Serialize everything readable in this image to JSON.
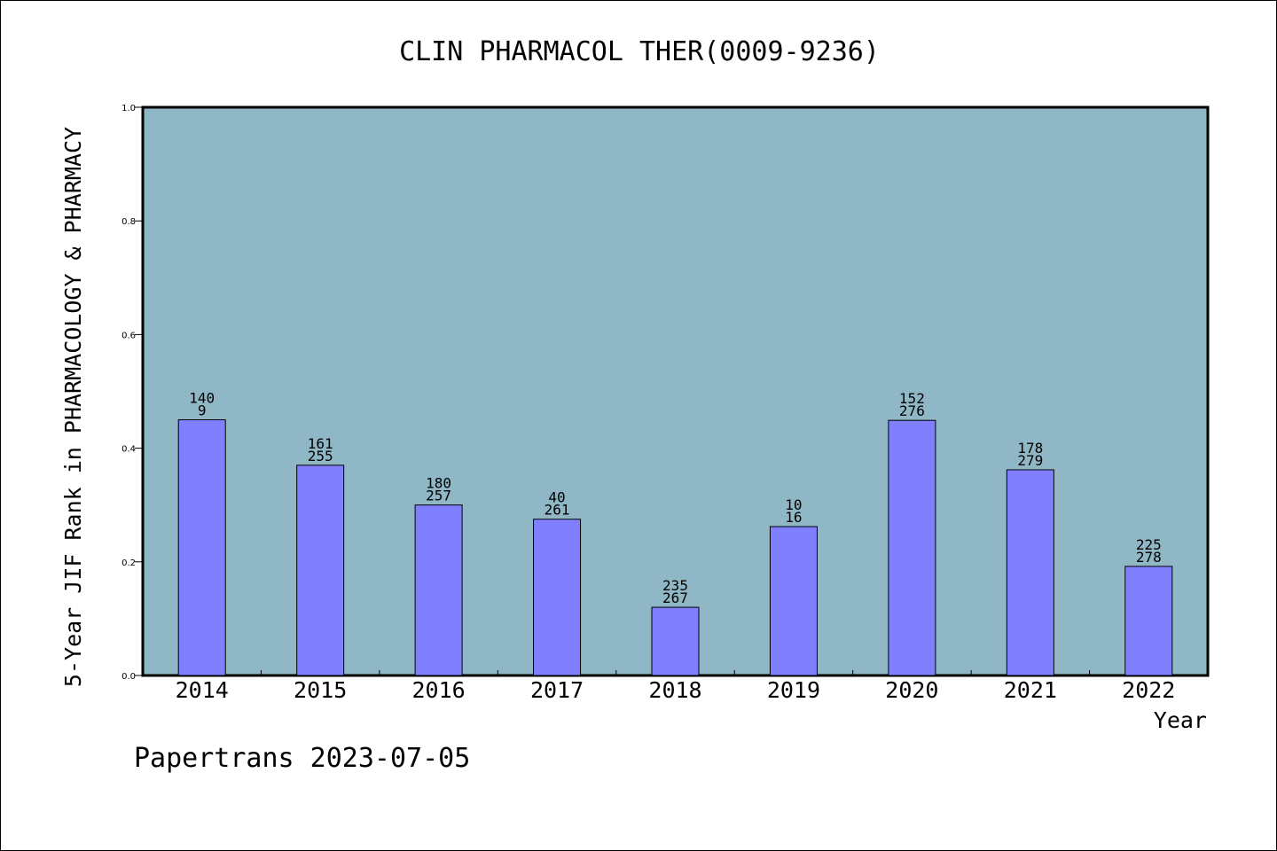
{
  "chart_data": {
    "type": "bar",
    "title": "CLIN PHARMACOL THER(0009-9236)",
    "xlabel": "Year",
    "ylabel": "5-Year JIF Rank in PHARMACOLOGY & PHARMACY",
    "ylim": [
      0,
      1.0
    ],
    "yticks": [
      "0.0",
      "0.2",
      "0.4",
      "0.6",
      "0.8",
      "1.0"
    ],
    "grid": false,
    "categories": [
      "2014",
      "2015",
      "2016",
      "2017",
      "2018",
      "2019",
      "2020",
      "2021",
      "2022"
    ],
    "values": [
      0.45,
      0.37,
      0.3,
      0.275,
      0.12,
      0.262,
      0.449,
      0.362,
      0.192
    ],
    "annotations": [
      [
        "140",
        "9"
      ],
      [
        "161",
        "255"
      ],
      [
        "180",
        "257"
      ],
      [
        "40",
        "261"
      ],
      [
        "235",
        "267"
      ],
      [
        "10",
        "16"
      ],
      [
        "152",
        "276"
      ],
      [
        "178",
        "279"
      ],
      [
        "225",
        "278"
      ]
    ],
    "colors": {
      "plot_background": "#8fb7c5",
      "bar_fill": "#8080ff",
      "bar_stroke": "#000000"
    }
  },
  "footer": {
    "text": "Papertrans 2023-07-05"
  }
}
